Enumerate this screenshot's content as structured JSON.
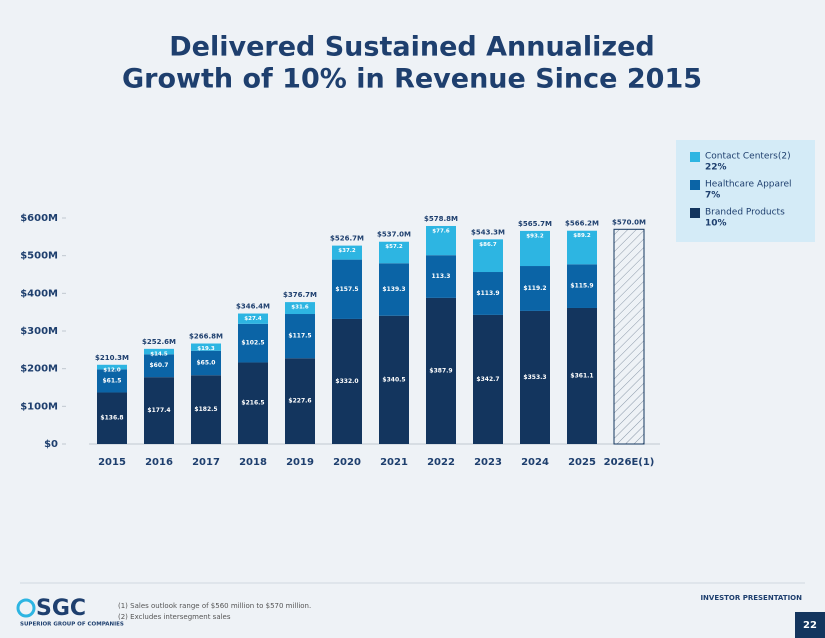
{
  "chart_data": {
    "type": "stacked_bar",
    "title": [
      "Delivered Sustained Annualized",
      "Growth of 10% in Revenue Since 2015"
    ],
    "categories": [
      "2015",
      "2016",
      "2017",
      "2018",
      "2019",
      "2020",
      "2021",
      "2022",
      "2023",
      "2024",
      "2025",
      "2026E(1)"
    ],
    "series": [
      {
        "name": "Branded Products",
        "growth": "10%",
        "color": "#13355e",
        "values": [
          136.8,
          177.4,
          182.5,
          216.5,
          227.6,
          332.0,
          340.5,
          387.9,
          342.7,
          353.3,
          361.1,
          null
        ],
        "value_labels": [
          "$136.8",
          "$177.4",
          "$182.5",
          "$216.5",
          "$227.6",
          "$332.0",
          "$340.5",
          "$387.9",
          "$342.7",
          "$353.3",
          "$361.1",
          null
        ]
      },
      {
        "name": "Healthcare Apparel",
        "growth": "7%",
        "color": "#0b64a6",
        "values": [
          61.5,
          60.7,
          65.0,
          102.5,
          117.5,
          157.5,
          139.3,
          113.3,
          113.9,
          119.2,
          115.9,
          null
        ],
        "value_labels": [
          "$61.5",
          "$60.7",
          "$65.0",
          "$102.5",
          "$117.5",
          "$157.5",
          "$139.3",
          "113.3",
          "$113.9",
          "$119.2",
          "$115.9",
          null
        ]
      },
      {
        "name": "Contact Centers(2)",
        "growth": "22%",
        "color": "#2db5e2",
        "values": [
          12.0,
          14.5,
          19.3,
          27.4,
          31.6,
          37.2,
          57.2,
          77.6,
          86.7,
          93.2,
          89.2,
          null
        ],
        "value_labels": [
          "$12.0",
          "$14.5",
          "$19.3",
          "$27.4",
          "$31.6",
          "$37.2",
          "$57.2",
          "$77.6",
          "$86.7",
          "$93.2",
          "$89.2",
          null
        ]
      }
    ],
    "totals": {
      "values": [
        210.3,
        252.6,
        266.8,
        346.4,
        376.7,
        526.7,
        537.0,
        578.8,
        543.3,
        565.7,
        566.2,
        570.0
      ],
      "value_labels": [
        "$210.3M",
        "$252.6M",
        "$266.8M",
        "$346.4M",
        "$376.7M",
        "$526.7M",
        "$537.0M",
        "$578.8M",
        "$543.3M",
        "$565.7M",
        "$566.2M",
        "$570.0M"
      ]
    },
    "ylim": [
      0,
      600
    ],
    "yticks": [
      {
        "value": 0,
        "label": "$0"
      },
      {
        "value": 100,
        "label": "$100M"
      },
      {
        "value": 200,
        "label": "$200M"
      },
      {
        "value": 300,
        "label": "$300M"
      },
      {
        "value": 400,
        "label": "$400M"
      },
      {
        "value": 500,
        "label": "$500M"
      },
      {
        "value": 600,
        "label": "$600M"
      }
    ],
    "grid": false,
    "legend_position": "upper right"
  },
  "footer": {
    "logo": "SGC",
    "company": "SUPERIOR GROUP OF COMPANIES",
    "notes": [
      "(1) Sales outlook range of $560 million to $570 million.",
      "(2) Excludes intersegment sales"
    ],
    "label": "INVESTOR PRESENTATION",
    "page": "22"
  }
}
